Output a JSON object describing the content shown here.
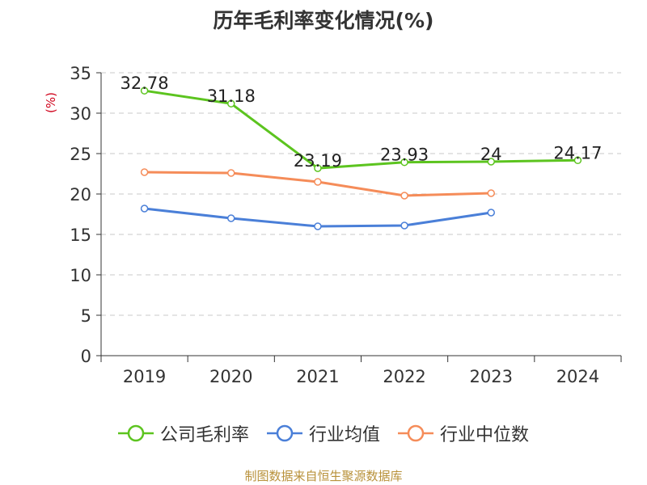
{
  "chart_data": {
    "type": "line",
    "title": "历年毛利率变化情况(%)",
    "ylabel": "(%)",
    "categories": [
      "2019",
      "2020",
      "2021",
      "2022",
      "2023",
      "2024"
    ],
    "ylim": [
      0,
      35
    ],
    "yticks": [
      0,
      5,
      10,
      15,
      20,
      25,
      30,
      35
    ],
    "grid": true,
    "legend_position": "bottom",
    "series": [
      {
        "name": "公司毛利率",
        "color": "#5cc41f",
        "values": [
          32.78,
          31.18,
          23.19,
          23.93,
          24,
          24.17
        ],
        "labels": [
          "32.78",
          "31.18",
          "23.19",
          "23.93",
          "24",
          "24.17"
        ]
      },
      {
        "name": "行业均值",
        "color": "#4a7fd8",
        "values": [
          18.2,
          17.0,
          16.0,
          16.1,
          17.7,
          null
        ]
      },
      {
        "name": "行业中位数",
        "color": "#f58c59",
        "values": [
          22.7,
          22.6,
          21.5,
          19.8,
          20.1,
          null
        ]
      }
    ]
  },
  "footer": {
    "source": "制图数据来自恒生聚源数据库"
  }
}
